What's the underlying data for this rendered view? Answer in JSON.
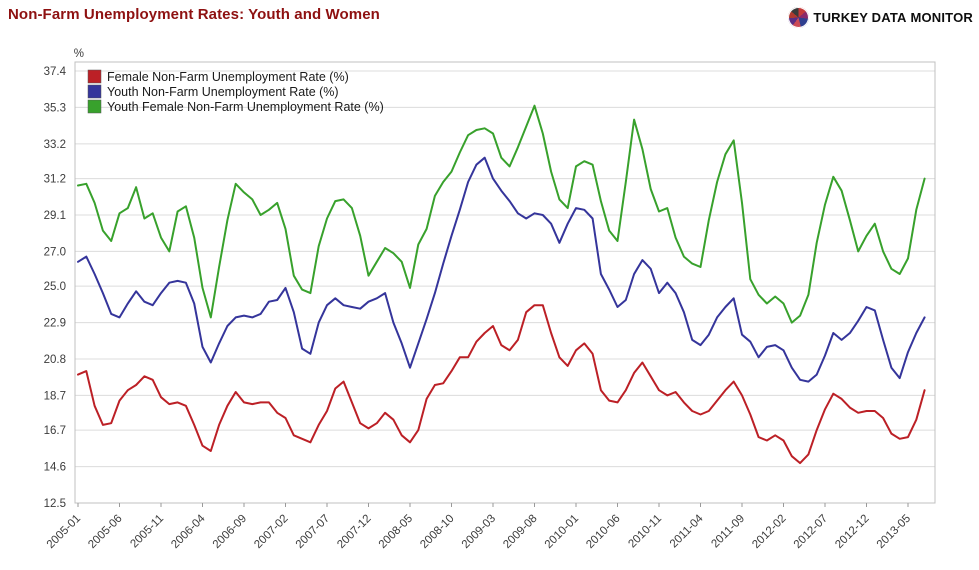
{
  "header": {
    "title": "Non-Farm Unemployment Rates: Youth and Women",
    "brand_regular": "TURKEY DATA",
    "brand_bold": "MONITOR"
  },
  "chart_data": {
    "type": "line",
    "title": "Non-Farm Unemployment Rates: Youth and Women",
    "unit_label": "%",
    "ylim": [
      12.5,
      37.4
    ],
    "y_ticks": [
      37.4,
      35.3,
      33.2,
      31.2,
      29.1,
      27.0,
      25.0,
      22.9,
      20.8,
      18.7,
      16.7,
      14.6,
      12.5
    ],
    "grid": "horizontal",
    "legend_position": "top-left-inside",
    "x_start": "2005-01",
    "x_tick_every_months": 5,
    "x_tick_labels": [
      "2005-01",
      "2005-06",
      "2005-11",
      "2006-04",
      "2006-09",
      "2007-02",
      "2007-07",
      "2007-12",
      "2008-05",
      "2008-10",
      "2009-03",
      "2009-08",
      "2010-01",
      "2010-06",
      "2010-11",
      "2011-04",
      "2011-09",
      "2012-02",
      "2012-07",
      "2012-12",
      "2013-05"
    ],
    "colors": {
      "grid": "#dcdcdc",
      "border": "#c0c0c0",
      "axis_text": "#3c3c3c"
    },
    "series": [
      {
        "key": "female",
        "name": "Female Non-Farm Unemployment Rate (%)",
        "color": "#bc2026",
        "values": [
          19.9,
          20.1,
          18.1,
          17.0,
          17.1,
          18.4,
          19.0,
          19.3,
          19.8,
          19.6,
          18.6,
          18.2,
          18.3,
          18.1,
          17.0,
          15.8,
          15.5,
          17.0,
          18.1,
          18.9,
          18.3,
          18.2,
          18.3,
          18.3,
          17.7,
          17.4,
          16.4,
          16.2,
          16.0,
          17.0,
          17.8,
          19.1,
          19.5,
          18.3,
          17.1,
          16.8,
          17.1,
          17.7,
          17.3,
          16.4,
          16.0,
          16.7,
          18.5,
          19.3,
          19.4,
          20.1,
          20.9,
          20.9,
          21.8,
          22.3,
          22.7,
          21.6,
          21.3,
          21.9,
          23.5,
          23.9,
          23.9,
          22.3,
          20.9,
          20.4,
          21.3,
          21.7,
          21.1,
          19.0,
          18.4,
          18.3,
          19.0,
          20.0,
          20.6,
          19.8,
          19.0,
          18.7,
          18.9,
          18.3,
          17.8,
          17.6,
          17.8,
          18.4,
          19.0,
          19.5,
          18.7,
          17.6,
          16.3,
          16.1,
          16.4,
          16.1,
          15.2,
          14.8,
          15.3,
          16.7,
          17.9,
          18.8,
          18.5,
          18.0,
          17.7,
          17.8,
          17.8,
          17.4,
          16.5,
          16.2,
          16.3,
          17.3,
          19.0
        ]
      },
      {
        "key": "youth",
        "name": "Youth Non-Farm Unemployment Rate (%)",
        "color": "#35359b",
        "values": [
          26.4,
          26.7,
          25.7,
          24.6,
          23.4,
          23.2,
          24.0,
          24.7,
          24.1,
          23.9,
          24.6,
          25.2,
          25.3,
          25.2,
          24.0,
          21.5,
          20.6,
          21.7,
          22.7,
          23.2,
          23.3,
          23.2,
          23.4,
          24.1,
          24.2,
          24.9,
          23.5,
          21.4,
          21.1,
          22.9,
          23.9,
          24.3,
          23.9,
          23.8,
          23.7,
          24.1,
          24.3,
          24.6,
          22.9,
          21.7,
          20.3,
          21.7,
          23.1,
          24.6,
          26.3,
          27.9,
          29.4,
          31.0,
          32.0,
          32.4,
          31.2,
          30.5,
          29.9,
          29.2,
          28.9,
          29.2,
          29.1,
          28.6,
          27.5,
          28.6,
          29.5,
          29.4,
          28.9,
          25.7,
          24.8,
          23.8,
          24.2,
          25.7,
          26.5,
          26.0,
          24.6,
          25.2,
          24.6,
          23.5,
          21.9,
          21.6,
          22.2,
          23.2,
          23.8,
          24.3,
          22.2,
          21.8,
          20.9,
          21.5,
          21.6,
          21.3,
          20.3,
          19.6,
          19.5,
          19.9,
          21.0,
          22.3,
          21.9,
          22.3,
          23.0,
          23.8,
          23.6,
          21.9,
          20.3,
          19.7,
          21.2,
          22.3,
          23.2
        ]
      },
      {
        "key": "youth-female",
        "name": "Youth Female Non-Farm Unemployment Rate (%)",
        "color": "#38a12c",
        "values": [
          30.8,
          30.9,
          29.8,
          28.2,
          27.6,
          29.2,
          29.5,
          30.7,
          28.9,
          29.2,
          27.8,
          27.0,
          29.3,
          29.6,
          27.8,
          24.9,
          23.2,
          26.1,
          28.8,
          30.9,
          30.4,
          30.0,
          29.1,
          29.4,
          29.8,
          28.3,
          25.6,
          24.8,
          24.6,
          27.3,
          28.9,
          29.9,
          30.0,
          29.5,
          27.9,
          25.6,
          26.4,
          27.2,
          26.9,
          26.4,
          24.9,
          27.4,
          28.3,
          30.2,
          31.0,
          31.6,
          32.7,
          33.7,
          34.0,
          34.1,
          33.8,
          32.4,
          31.9,
          33.0,
          34.2,
          35.4,
          33.8,
          31.6,
          30.0,
          29.5,
          31.9,
          32.2,
          32.0,
          29.9,
          28.2,
          27.6,
          31.0,
          34.6,
          32.9,
          30.6,
          29.3,
          29.5,
          27.8,
          26.7,
          26.3,
          26.1,
          28.8,
          31.0,
          32.6,
          33.4,
          29.8,
          25.4,
          24.5,
          24.0,
          24.4,
          24.0,
          22.9,
          23.3,
          24.5,
          27.5,
          29.7,
          31.3,
          30.5,
          28.8,
          27.0,
          27.9,
          28.6,
          27.0,
          26.0,
          25.7,
          26.6,
          29.4,
          31.2
        ]
      }
    ]
  }
}
